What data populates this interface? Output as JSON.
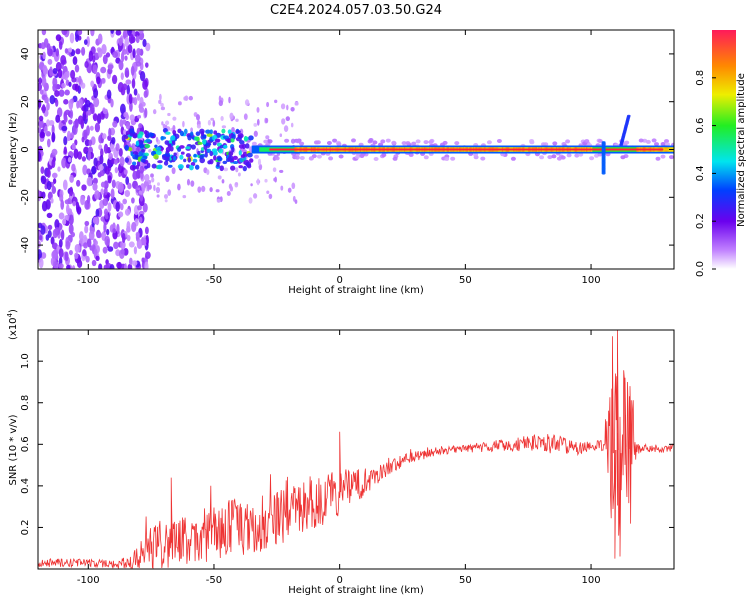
{
  "figure": {
    "title": "C2E4.2024.057.03.50.G24"
  },
  "colors": {
    "snr_line": "#ee3333",
    "ridge_core": "#ff1a3c",
    "axes": "#000000"
  },
  "chart_data": [
    {
      "type": "heatmap",
      "xlabel": "Height of straight line (km)",
      "ylabel": "Frequency (Hz)",
      "xlim": [
        -120,
        133
      ],
      "ylim": [
        -50,
        50
      ],
      "xticks": [
        -100,
        -50,
        0,
        50,
        100
      ],
      "yticks": [
        -40,
        -20,
        0,
        20,
        40
      ],
      "grid": false,
      "colorbar": {
        "label": "Normalized spectral amplitude",
        "range": [
          0,
          1
        ],
        "ticks": [
          "0.0",
          "0.2",
          "0.4",
          "0.6",
          "0.8"
        ],
        "colormap": "rainbow (white → purple → blue → cyan → green → yellow → orange → red)"
      },
      "features": {
        "noise_region_x": [
          -120,
          -80
        ],
        "ridge_frequency_hz": 0,
        "ridge_start_x": -45,
        "feature_at_x_105_freq_range": [
          -10,
          3
        ],
        "feature_at_x_114_freq_range": [
          2,
          14
        ]
      }
    },
    {
      "type": "line",
      "xlabel": "Height of straight line (km)",
      "ylabel": "SNR (10 * v/v)",
      "y_multiplier": "(x10",
      "y_exponent": "4",
      "y_multiplier_close": ")",
      "xlim": [
        -120,
        133
      ],
      "ylim": [
        0,
        1.15
      ],
      "xticks": [
        -100,
        -50,
        0,
        50,
        100
      ],
      "yticks": [
        "0.2",
        "0.4",
        "0.6",
        "0.8",
        "1.0"
      ],
      "grid": false,
      "series": [
        {
          "x": [
            -120,
            -100,
            -85,
            -80,
            -75,
            -70,
            -65,
            -60,
            -55,
            -50,
            -45,
            -40,
            -35,
            -30,
            -25,
            -20,
            -15,
            -10,
            -5,
            0,
            5,
            10,
            15,
            20,
            25,
            30,
            40,
            50,
            60,
            70,
            80,
            85,
            90,
            95,
            100,
            105,
            108,
            110,
            112,
            114,
            116,
            118,
            120,
            125,
            133
          ],
          "y": [
            0.03,
            0.03,
            0.02,
            0.06,
            0.1,
            0.12,
            0.13,
            0.14,
            0.16,
            0.17,
            0.19,
            0.2,
            0.21,
            0.22,
            0.24,
            0.27,
            0.29,
            0.31,
            0.34,
            0.37,
            0.39,
            0.42,
            0.46,
            0.49,
            0.52,
            0.54,
            0.57,
            0.58,
            0.59,
            0.6,
            0.61,
            0.6,
            0.59,
            0.58,
            0.59,
            0.6,
            0.55,
            0.58,
            0.55,
            0.6,
            0.57,
            0.58,
            0.58,
            0.58,
            0.58
          ],
          "noise": [
            0.02,
            0.02,
            0.02,
            0.06,
            0.12,
            0.12,
            0.12,
            0.12,
            0.13,
            0.13,
            0.14,
            0.14,
            0.14,
            0.14,
            0.13,
            0.13,
            0.13,
            0.12,
            0.12,
            0.11,
            0.09,
            0.07,
            0.05,
            0.04,
            0.03,
            0.025,
            0.02,
            0.02,
            0.025,
            0.035,
            0.04,
            0.05,
            0.04,
            0.03,
            0.02,
            0.03,
            0.3,
            0.48,
            0.45,
            0.4,
            0.25,
            0.03,
            0.02,
            0.02,
            0.02
          ]
        }
      ],
      "spikes": [
        {
          "x": -67,
          "y": 0.44
        },
        {
          "x": 0,
          "y": 0.66
        },
        {
          "x": 108.5,
          "y": 1.12
        },
        {
          "x": 109.5,
          "y": 0.05
        },
        {
          "x": 110.5,
          "y": 1.15
        },
        {
          "x": 111.5,
          "y": 0.06
        },
        {
          "x": 113.5,
          "y": 0.92
        },
        {
          "x": 115.5,
          "y": 0.88
        }
      ]
    }
  ]
}
